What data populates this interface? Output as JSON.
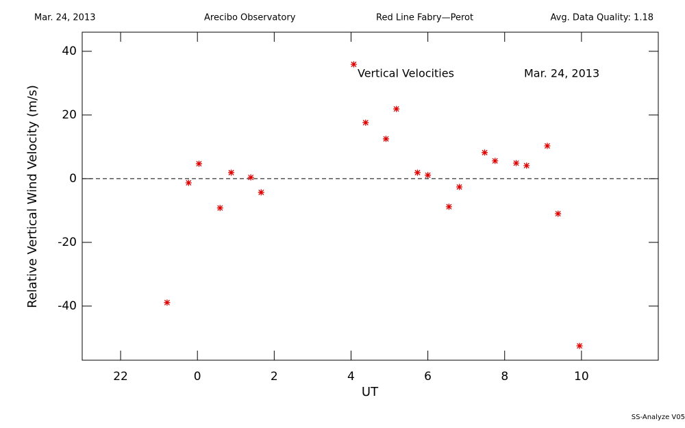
{
  "chart_data": {
    "type": "scatter",
    "header": [
      "Mar. 24, 2013",
      "Arecibo Observatory",
      "Red Line Fabry—Perot",
      "Avg. Data Quality: 1.18"
    ],
    "annotations": [
      "Vertical Velocities",
      "Mar. 24, 2013"
    ],
    "footer": "SS-Analyze V05",
    "x_label": "UT",
    "y_label": "Relative Vertical Wind Velocity (m/s)",
    "xlim": [
      -3,
      12
    ],
    "xticks": [
      {
        "value": -2,
        "label": "22"
      },
      0,
      2,
      4,
      6,
      8,
      10
    ],
    "ylim": [
      -57,
      46
    ],
    "yticks": [
      -40,
      -20,
      0,
      20,
      40
    ],
    "reference_line": 0,
    "series": [
      {
        "color": "#e00000",
        "x": [
          -0.79,
          -0.23,
          0.04,
          0.59,
          0.88,
          1.39,
          1.66,
          4.07,
          4.38,
          4.91,
          5.18,
          5.73,
          6.0,
          6.55,
          6.82,
          7.48,
          7.75,
          8.3,
          8.57,
          9.11,
          9.39,
          9.95
        ],
        "values": [
          -38.9,
          -1.3,
          4.7,
          -9.2,
          1.9,
          0.4,
          -4.3,
          35.9,
          17.6,
          12.5,
          21.9,
          1.9,
          1.1,
          -8.8,
          -2.6,
          8.2,
          5.6,
          4.9,
          4.1,
          10.3,
          -11.0,
          -52.5
        ]
      }
    ]
  }
}
